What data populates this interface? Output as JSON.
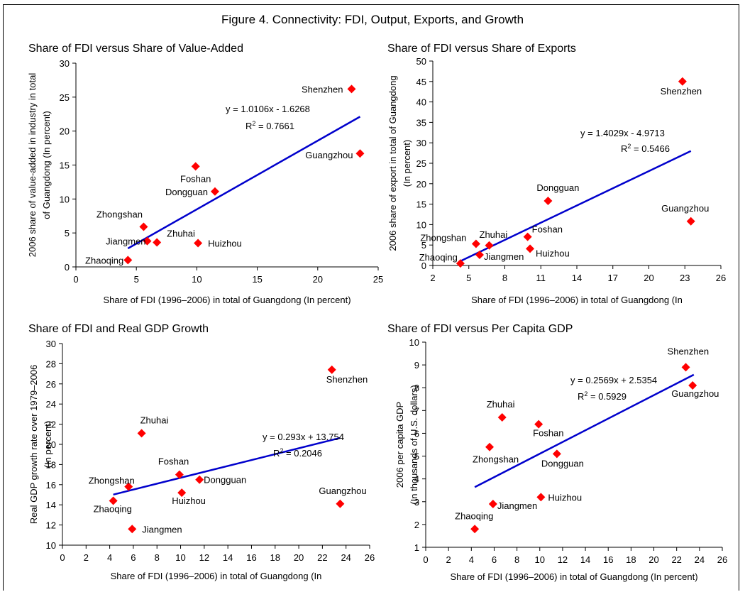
{
  "figure": {
    "title": "Figure 4. Connectivity: FDI, Output, Exports, and Growth"
  },
  "colors": {
    "marker": "#ff0000",
    "trend": "#0000cc",
    "axis": "#000000"
  },
  "chart_data": [
    {
      "type": "scatter",
      "title": "Share of FDI versus Share of Value-Added",
      "xlabel": "Share of FDI (1996–2006) in total of Guangdong (In percent)",
      "ylabel": [
        "2006 share of value-added in industry in total",
        "of Guangdong (In percent)"
      ],
      "xlim": [
        0,
        25
      ],
      "ylim": [
        0,
        30
      ],
      "xticks": [
        0,
        5,
        10,
        15,
        20,
        25
      ],
      "yticks": [
        0,
        5,
        10,
        15,
        20,
        25,
        30
      ],
      "points": [
        {
          "label": "Shenzhen",
          "x": 22.8,
          "y": 26.2
        },
        {
          "label": "Guangzhou",
          "x": 23.5,
          "y": 16.7
        },
        {
          "label": "Foshan",
          "x": 9.9,
          "y": 14.8
        },
        {
          "label": "Dongguan",
          "x": 11.5,
          "y": 11.1
        },
        {
          "label": "Zhongshan",
          "x": 5.6,
          "y": 5.9
        },
        {
          "label": "Jiangmen",
          "x": 5.9,
          "y": 3.8
        },
        {
          "label": "Zhuhai",
          "x": 6.7,
          "y": 3.6
        },
        {
          "label": "Huizhou",
          "x": 10.1,
          "y": 3.5
        },
        {
          "label": "Zhaoqing",
          "x": 4.3,
          "y": 1.0
        }
      ],
      "trendline": {
        "slope": 1.0106,
        "intercept": -1.6268,
        "x_from": 4.3,
        "x_to": 23.5
      },
      "equation": "y = 1.0106x - 1.6268",
      "r2": "= 0.7661"
    },
    {
      "type": "scatter",
      "title": "Share of FDI versus Share of Exports",
      "xlabel": "Share of FDI (1996–2006) in total of Guangdong (In",
      "ylabel": [
        "2006 share of export in total of Guangdong",
        "(In percent)"
      ],
      "xlim": [
        2,
        26
      ],
      "ylim": [
        0,
        50
      ],
      "xticks": [
        2,
        5,
        8,
        11,
        14,
        17,
        20,
        23,
        26
      ],
      "yticks": [
        0,
        5,
        10,
        15,
        20,
        25,
        30,
        35,
        40,
        45,
        50
      ],
      "points": [
        {
          "label": "Shenzhen",
          "x": 22.8,
          "y": 45.0
        },
        {
          "label": "Dongguan",
          "x": 11.6,
          "y": 15.8
        },
        {
          "label": "Guangzhou",
          "x": 23.5,
          "y": 10.8
        },
        {
          "label": "Foshan",
          "x": 9.9,
          "y": 7.0
        },
        {
          "label": "Zhongshan",
          "x": 5.6,
          "y": 5.3
        },
        {
          "label": "Zhuhai",
          "x": 6.7,
          "y": 4.9
        },
        {
          "label": "Huizhou",
          "x": 10.1,
          "y": 4.1
        },
        {
          "label": "Jiangmen",
          "x": 5.9,
          "y": 2.6
        },
        {
          "label": "Zhaoqing",
          "x": 4.3,
          "y": 0.5
        }
      ],
      "trendline": {
        "slope": 1.4029,
        "intercept": -4.9713,
        "x_from": 4.3,
        "x_to": 23.5
      },
      "equation": "y = 1.4029x - 4.9713",
      "r2": "= 0.5466"
    },
    {
      "type": "scatter",
      "title": "Share of FDI and Real GDP Growth",
      "xlabel": "Share of FDI (1996–2006) in total of Guangdong (In",
      "ylabel": [
        "Real GDP growth rate over 1979–2006",
        "(In percent)"
      ],
      "xlim": [
        0,
        26
      ],
      "ylim": [
        10,
        30
      ],
      "xticks": [
        0,
        2,
        4,
        6,
        8,
        10,
        12,
        14,
        16,
        18,
        20,
        22,
        24,
        26
      ],
      "yticks": [
        10,
        12,
        14,
        16,
        18,
        20,
        22,
        24,
        26,
        28,
        30
      ],
      "points": [
        {
          "label": "Shenzhen",
          "x": 22.8,
          "y": 27.4
        },
        {
          "label": "Zhuhai",
          "x": 6.7,
          "y": 21.1
        },
        {
          "label": "Foshan",
          "x": 9.9,
          "y": 17.0
        },
        {
          "label": "Dongguan",
          "x": 11.6,
          "y": 16.5
        },
        {
          "label": "Zhongshan",
          "x": 5.6,
          "y": 15.8
        },
        {
          "label": "Huizhou",
          "x": 10.1,
          "y": 15.2
        },
        {
          "label": "Zhaoqing",
          "x": 4.3,
          "y": 14.4
        },
        {
          "label": "Guangzhou",
          "x": 23.5,
          "y": 14.1
        },
        {
          "label": "Jiangmen",
          "x": 5.9,
          "y": 11.6
        }
      ],
      "trendline": {
        "slope": 0.293,
        "intercept": 13.754,
        "x_from": 4.3,
        "x_to": 23.5
      },
      "equation": "y = 0.293x + 13.754",
      "r2": "= 0.2046"
    },
    {
      "type": "scatter",
      "title": "Share of FDI versus Per Capita GDP",
      "xlabel": "Share of FDI (1996–2006) in total of Guangdong (In percent)",
      "ylabel": [
        "2006 per capita GDP",
        "(In thousands of U.S. dollars)"
      ],
      "xlim": [
        0,
        26
      ],
      "ylim": [
        1,
        10
      ],
      "xticks": [
        0,
        2,
        4,
        6,
        8,
        10,
        12,
        14,
        16,
        18,
        20,
        22,
        24,
        26
      ],
      "yticks": [
        1,
        2,
        3,
        4,
        5,
        6,
        7,
        8,
        9,
        10
      ],
      "points": [
        {
          "label": "Shenzhen",
          "x": 22.8,
          "y": 8.9
        },
        {
          "label": "Guangzhou",
          "x": 23.4,
          "y": 8.1
        },
        {
          "label": "Zhuhai",
          "x": 6.7,
          "y": 6.7
        },
        {
          "label": "Foshan",
          "x": 9.9,
          "y": 6.4
        },
        {
          "label": "Zhongshan",
          "x": 5.6,
          "y": 5.4
        },
        {
          "label": "Dongguan",
          "x": 11.5,
          "y": 5.1
        },
        {
          "label": "Huizhou",
          "x": 10.1,
          "y": 3.2
        },
        {
          "label": "Jiangmen",
          "x": 5.9,
          "y": 2.9
        },
        {
          "label": "Zhaoqing",
          "x": 4.3,
          "y": 1.8
        }
      ],
      "trendline": {
        "slope": 0.2569,
        "intercept": 2.5354,
        "x_from": 4.3,
        "x_to": 23.5
      },
      "equation": "y = 0.2569x + 2.5354",
      "r2": "= 0.5929"
    }
  ]
}
